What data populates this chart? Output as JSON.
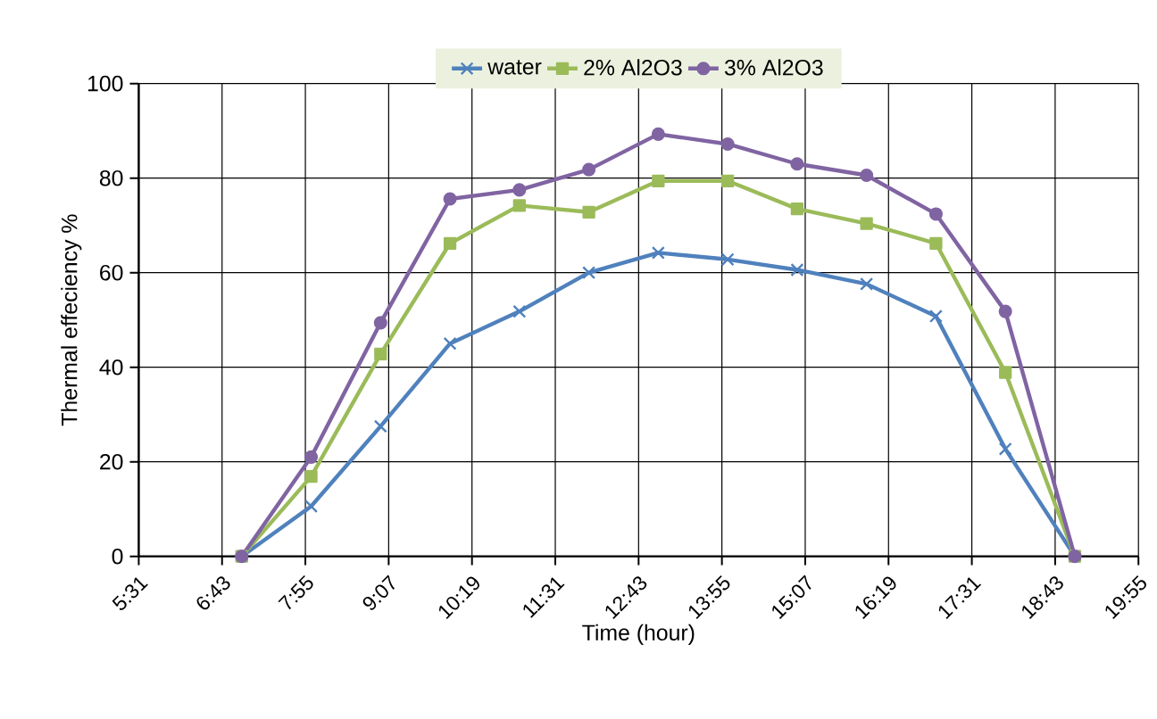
{
  "chart_data": {
    "type": "line",
    "xlabel": "Time (hour)",
    "ylabel": "Thermal effeciency %",
    "x": [
      7,
      8,
      9,
      10,
      11,
      12,
      13,
      14,
      15,
      16,
      17,
      18,
      19
    ],
    "series": [
      {
        "name": "water",
        "color": "#4f81bd",
        "marker": "cross",
        "values": [
          0,
          10.6,
          27.5,
          45,
          51.8,
          60,
          64.2,
          62.8,
          60.6,
          57.6,
          50.8,
          22.7,
          0
        ]
      },
      {
        "name": "2% Al2O3",
        "color": "#9bbb59",
        "marker": "square",
        "values": [
          0,
          16.9,
          42.8,
          66.2,
          74.2,
          72.8,
          79.4,
          79.4,
          73.5,
          70.4,
          66.2,
          38.9,
          0
        ]
      },
      {
        "name": "3% Al2O3",
        "color": "#8064a2",
        "marker": "circle",
        "values": [
          0,
          21,
          49.4,
          75.6,
          77.5,
          81.8,
          89.3,
          87.2,
          83,
          80.6,
          72.4,
          51.8,
          0
        ]
      }
    ],
    "xlim": [
      5.516667,
      19.916667
    ],
    "xticks": [
      {
        "value": 5.516667,
        "label": "5:31"
      },
      {
        "value": 6.716667,
        "label": "6:43"
      },
      {
        "value": 7.916667,
        "label": "7:55"
      },
      {
        "value": 9.116667,
        "label": "9:07"
      },
      {
        "value": 10.316667,
        "label": "10:19"
      },
      {
        "value": 11.516667,
        "label": "11:31"
      },
      {
        "value": 12.716667,
        "label": "12:43"
      },
      {
        "value": 13.916667,
        "label": "13:55"
      },
      {
        "value": 15.116667,
        "label": "15:07"
      },
      {
        "value": 16.316667,
        "label": "16:19"
      },
      {
        "value": 17.516667,
        "label": "17:31"
      },
      {
        "value": 18.716667,
        "label": "18:43"
      },
      {
        "value": 19.916667,
        "label": "19:55"
      }
    ],
    "ylim": [
      0,
      100
    ],
    "yticks": [
      0,
      20,
      40,
      60,
      80,
      100
    ],
    "grid": true,
    "legend": "top",
    "line_style": "solid"
  }
}
